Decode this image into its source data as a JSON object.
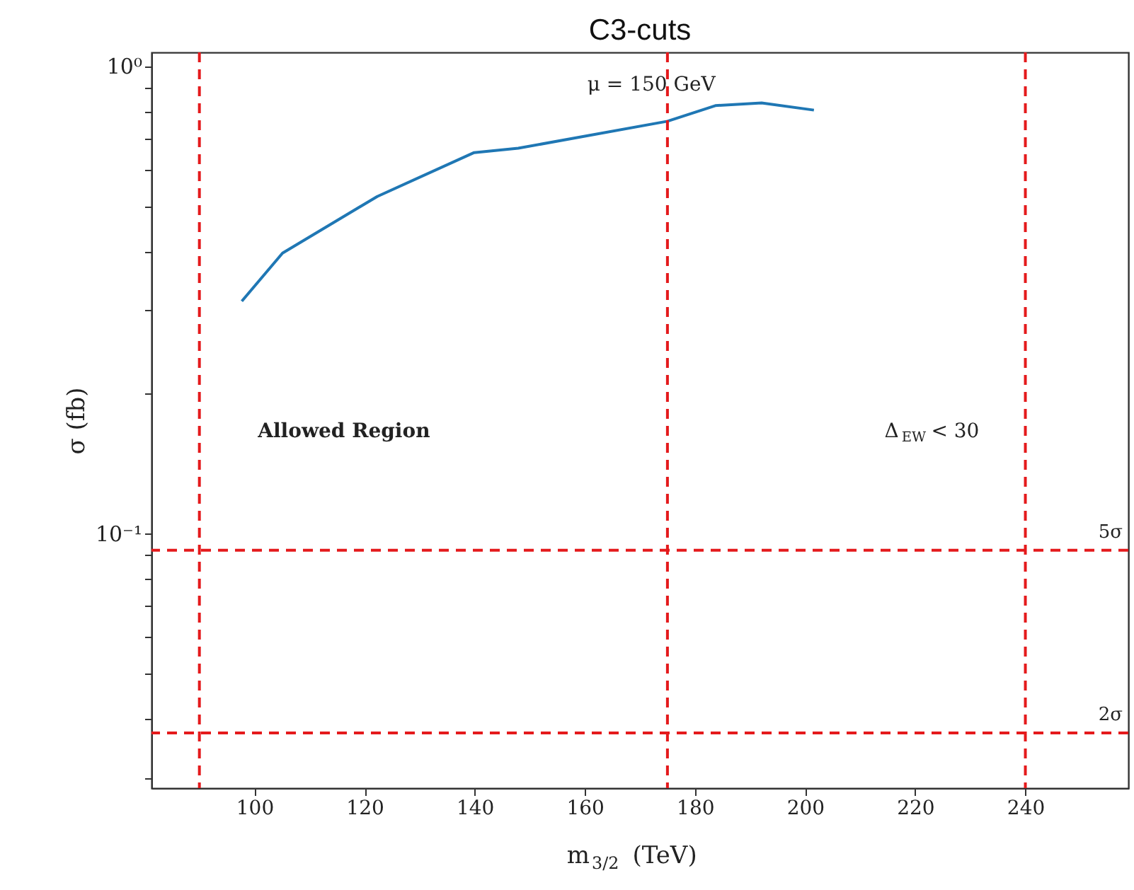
{
  "chart_data": {
    "type": "line",
    "title": "C3-cuts",
    "xlabel": "m$_{3/2}$ (TeV)",
    "ylabel": "σ (fb)",
    "log": "y",
    "grid": false,
    "x": [
      97.7,
      105.1,
      122.3,
      139.9,
      147.9,
      175,
      183.7,
      192.1,
      201.6
    ],
    "series": [
      {
        "color": "#1f77b4",
        "values": [
          0.314,
          0.398,
          0.526,
          0.653,
          0.667,
          0.762,
          0.823,
          0.834,
          0.805
        ]
      }
    ],
    "xlim": [
      81.3,
      258.7
    ],
    "xticks": [
      100,
      120,
      140,
      160,
      180,
      200,
      220,
      240
    ],
    "ylim": [
      0.0285,
      1.07
    ],
    "yticks": [
      {
        "value": 0.03,
        "label": null
      },
      {
        "value": 0.04,
        "label": null
      },
      {
        "value": 0.05,
        "label": null
      },
      {
        "value": 0.06,
        "label": null
      },
      {
        "value": 0.07,
        "label": null
      },
      {
        "value": 0.08,
        "label": null
      },
      {
        "value": 0.09,
        "label": null
      },
      {
        "value": 0.1,
        "label": "10⁻¹"
      },
      {
        "value": 0.2,
        "label": null
      },
      {
        "value": 0.3,
        "label": null
      },
      {
        "value": 0.4,
        "label": null
      },
      {
        "value": 0.5,
        "label": null
      },
      {
        "value": 0.6,
        "label": null
      },
      {
        "value": 0.7,
        "label": null
      },
      {
        "value": 0.8,
        "label": null
      },
      {
        "value": 0.9,
        "label": null
      },
      {
        "value": 1,
        "label": "10⁰"
      }
    ],
    "ref_lines": [
      {
        "axis": "x",
        "value": 90,
        "color": "#e41a1c",
        "line_style": "dashed"
      },
      {
        "axis": "x",
        "value": 175,
        "color": "#e41a1c",
        "line_style": "dashed"
      },
      {
        "axis": "x",
        "value": 240,
        "color": "#e41a1c",
        "line_style": "dashed"
      },
      {
        "axis": "y",
        "value": 0.092,
        "label": "5σ",
        "color": "#e41a1c",
        "line_style": "dashed"
      },
      {
        "axis": "y",
        "value": 0.0374,
        "label": "2σ",
        "color": "#e41a1c",
        "line_style": "dashed"
      }
    ],
    "annotations": [
      "μ = 150 GeV",
      "Allowed Region",
      "Δ$_{EW}$ < 30"
    ]
  }
}
